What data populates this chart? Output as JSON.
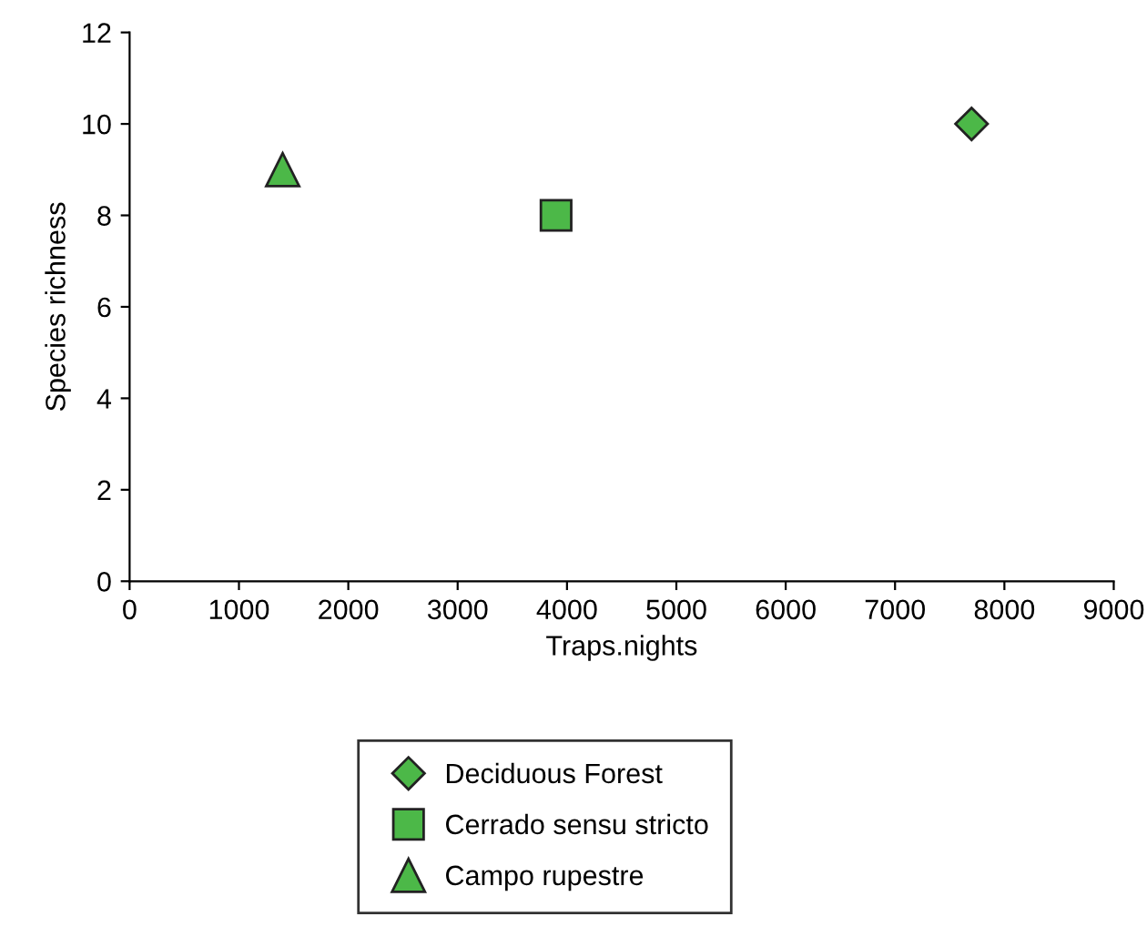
{
  "chart_data": {
    "type": "scatter",
    "xlabel": "Traps.nights",
    "ylabel": "Species richness",
    "series": [
      {
        "name": "Deciduous Forest",
        "color": "#4cb848",
        "marker": "diamond",
        "x": [
          7700
        ],
        "values": [
          10
        ]
      },
      {
        "name": "Cerrado sensu stricto",
        "color": "#4cb848",
        "marker": "square",
        "x": [
          3900
        ],
        "values": [
          8
        ]
      },
      {
        "name": "Campo rupestre",
        "color": "#4cb848",
        "marker": "triangle",
        "x": [
          1400
        ],
        "values": [
          9
        ]
      }
    ],
    "xlim": [
      0,
      9000
    ],
    "xticks": [
      0,
      1000,
      2000,
      3000,
      4000,
      5000,
      6000,
      7000,
      8000,
      9000
    ],
    "ylim": [
      0,
      12
    ],
    "yticks": [
      0,
      2,
      4,
      6,
      8,
      10,
      12
    ],
    "grid": false,
    "legend": "bottom"
  }
}
